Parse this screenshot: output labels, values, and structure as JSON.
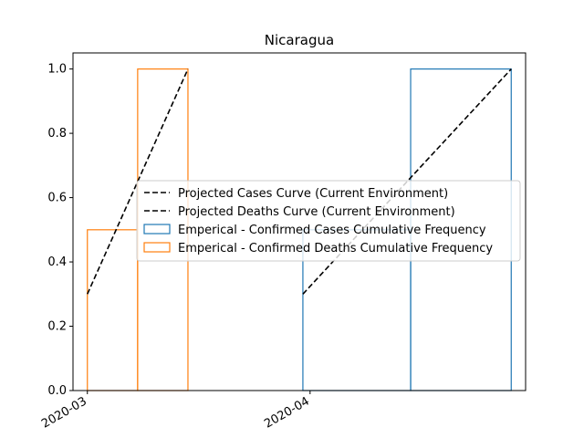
{
  "chart_data": {
    "type": "line",
    "title": "Nicaragua",
    "xlabel": "",
    "ylabel": "",
    "x_tick_labels": [
      "2020-03",
      "2020-04"
    ],
    "x_tick_dates": [
      "2020-03-01",
      "2020-04-01"
    ],
    "xlim": [
      "2020-02-28",
      "2020-05-01"
    ],
    "ylim": [
      0.0,
      1.05
    ],
    "y_ticks": [
      0.0,
      0.2,
      0.4,
      0.6,
      0.8,
      1.0
    ],
    "y_tick_labels": [
      "0.0",
      "0.2",
      "0.4",
      "0.6",
      "0.8",
      "1.0"
    ],
    "grid": false,
    "legend_position": "center-right",
    "series": [
      {
        "name": "Projected Cases Curve (Current Environment)",
        "kind": "line",
        "style": "dashed",
        "color": "#000000",
        "x": [
          "2020-03-31",
          "2020-04-29"
        ],
        "y": [
          0.3,
          1.0
        ]
      },
      {
        "name": "Projected Deaths Curve (Current Environment)",
        "kind": "line",
        "style": "dashed",
        "color": "#000000",
        "x": [
          "2020-03-01",
          "2020-03-15"
        ],
        "y": [
          0.3,
          1.0
        ]
      },
      {
        "name": "Emperical - Confirmed Cases Cumulative Frequency",
        "kind": "step-histogram",
        "color": "#1f77b4",
        "bins": [
          {
            "start": "2020-03-31",
            "end": "2020-04-15",
            "value": 0.5
          },
          {
            "start": "2020-04-15",
            "end": "2020-04-29",
            "value": 1.0
          }
        ]
      },
      {
        "name": "Emperical - Confirmed Deaths Cumulative Frequency",
        "kind": "step-histogram",
        "color": "#ff7f0e",
        "bins": [
          {
            "start": "2020-03-01",
            "end": "2020-03-08",
            "value": 0.5
          },
          {
            "start": "2020-03-08",
            "end": "2020-03-15",
            "value": 1.0
          }
        ]
      }
    ]
  }
}
